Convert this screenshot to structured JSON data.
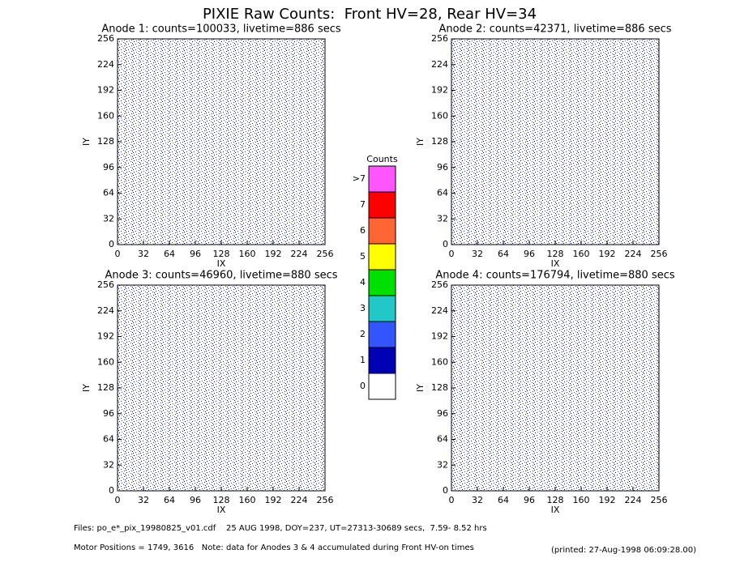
{
  "title": "PIXIE Raw Counts:  Front HV=28, Rear HV=34",
  "panels": [
    {
      "title": "Anode 1: counts=100033, livetime=886 secs",
      "x_label": "IX",
      "y_label": "IY"
    },
    {
      "title": "Anode 2: counts=42371, livetime=886 secs",
      "x_label": "IX",
      "y_label": "IY"
    },
    {
      "title": "Anode 3: counts=46960, livetime=880 secs",
      "x_label": "IX",
      "y_label": "IY"
    },
    {
      "title": "Anode 4: counts=176794, livetime=880 secs",
      "x_label": "IX",
      "y_label": "IY"
    }
  ],
  "axis_range": [
    0,
    256
  ],
  "axis_ticks": [
    0,
    32,
    64,
    96,
    128,
    160,
    192,
    224,
    256
  ],
  "colorbar": {
    "title": "Counts",
    "levels": [
      {
        "label": "0",
        "color": "#ffffff"
      },
      {
        "label": "1",
        "color": "#0000b4"
      },
      {
        "label": "2",
        "color": "#3355ff"
      },
      {
        "label": "3",
        "color": "#22c8c8"
      },
      {
        "label": "4",
        "color": "#00e000"
      },
      {
        "label": "5",
        "color": "#ffff00"
      },
      {
        "label": "6",
        "color": "#ff6633"
      },
      {
        "label": "7",
        "color": "#ff0000"
      },
      {
        "label": ">7",
        "color": "#ff55ff"
      }
    ]
  },
  "footer": {
    "files": "Files: po_e*_pix_19980825_v01.cdf    25 AUG 1998, DOY=237, UT=27313-30689 secs,  7.59- 8.52 hrs",
    "motor": "Motor Positions = 1749, 3616   Note: data for Anodes 3 & 4 accumulated during Front HV-on times",
    "printed": "(printed: 27-Aug-1998 06:09:28.00)"
  }
}
